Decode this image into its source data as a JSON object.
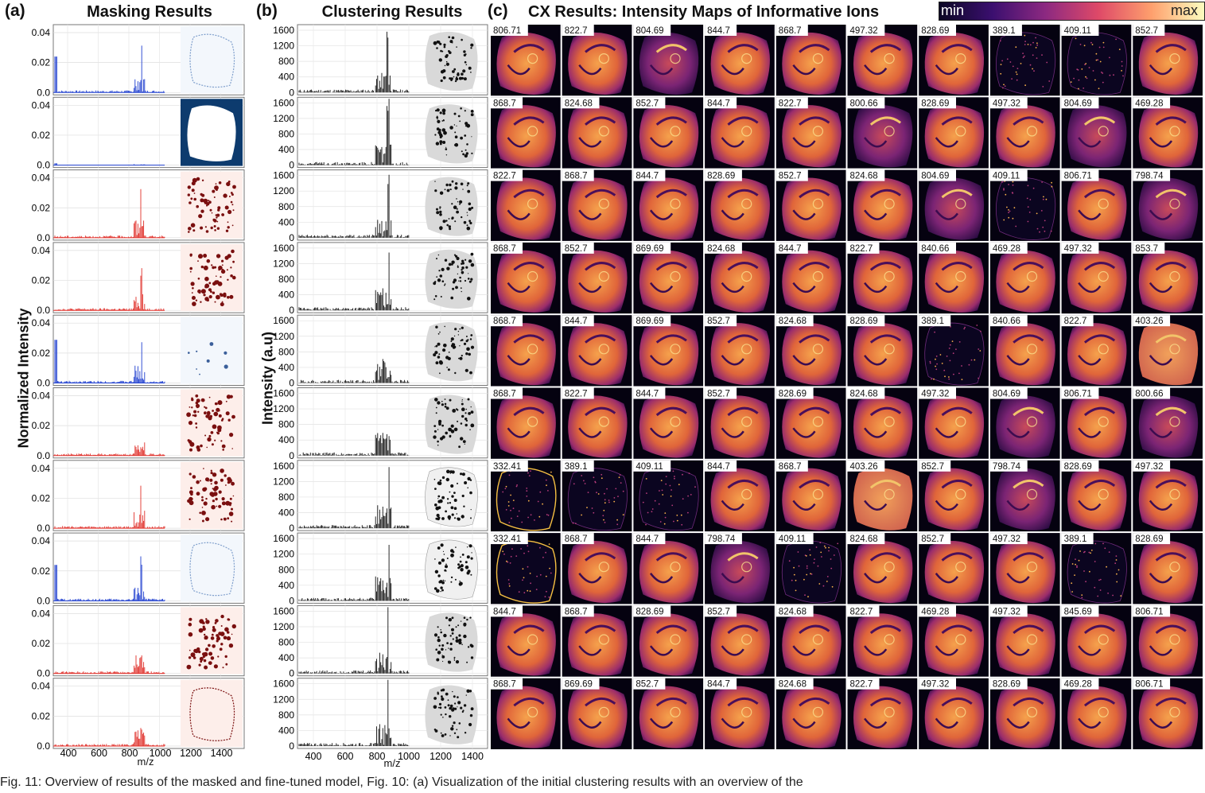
{
  "panels": {
    "a": {
      "letter": "(a)",
      "title": "Masking Results",
      "ylabel": "Normalized Intensity",
      "xlabel": "m/z",
      "yticks": [
        "0.04",
        "0.02",
        "0.0"
      ],
      "xticks": [
        "400",
        "600",
        "800",
        "1000",
        "1200",
        "1400"
      ]
    },
    "b": {
      "letter": "(b)",
      "title": "Clustering Results",
      "ylabel": "Intensity (a.u)",
      "xlabel": "m/z",
      "yticks": [
        "1600",
        "1200",
        "800",
        "400",
        "0"
      ],
      "xticks": [
        "400",
        "600",
        "800",
        "1000",
        "1200",
        "1400"
      ]
    },
    "c": {
      "letter": "(c)",
      "title": "CX Results:  Intensity Maps of Informative Ions"
    }
  },
  "colorbar": {
    "min_label": "min",
    "max_label": "max",
    "colors": [
      "#0b0724",
      "#3b0f6f",
      "#8c2981",
      "#de4968",
      "#fe9f6d",
      "#fcfdbf"
    ]
  },
  "masking_rows": [
    {
      "color": "#1f3fcf",
      "mask": "blue-outline"
    },
    {
      "color": "#1f3fcf",
      "mask": "navy-filled"
    },
    {
      "color": "#e0302a",
      "mask": "red-spots"
    },
    {
      "color": "#e0302a",
      "mask": "red-spots"
    },
    {
      "color": "#1f3fcf",
      "mask": "blue-sparse"
    },
    {
      "color": "#e0302a",
      "mask": "red-spots"
    },
    {
      "color": "#e0302a",
      "mask": "red-spots"
    },
    {
      "color": "#1f3fcf",
      "mask": "blue-outline"
    },
    {
      "color": "#e0302a",
      "mask": "red-spots"
    },
    {
      "color": "#e0302a",
      "mask": "red-outline"
    }
  ],
  "ion_grid": [
    [
      "806.71",
      "822.7",
      "804.69",
      "844.7",
      "868.7",
      "497.32",
      "828.69",
      "389.1",
      "409.11",
      "852.7"
    ],
    [
      "868.7",
      "824.68",
      "852.7",
      "844.7",
      "822.7",
      "800.66",
      "828.69",
      "497.32",
      "804.69",
      "469.28"
    ],
    [
      "822.7",
      "868.7",
      "844.7",
      "828.69",
      "852.7",
      "824.68",
      "804.69",
      "409.11",
      "806.71",
      "798.74"
    ],
    [
      "868.7",
      "852.7",
      "869.69",
      "824.68",
      "844.7",
      "822.7",
      "840.66",
      "469.28",
      "497.32",
      "853.7"
    ],
    [
      "868.7",
      "844.7",
      "869.69",
      "852.7",
      "824.68",
      "828.69",
      "389.1",
      "840.66",
      "822.7",
      "403.26"
    ],
    [
      "868.7",
      "822.7",
      "844.7",
      "852.7",
      "828.69",
      "824.68",
      "497.32",
      "804.69",
      "806.71",
      "800.66"
    ],
    [
      "332.41",
      "389.1",
      "409.11",
      "844.7",
      "868.7",
      "403.26",
      "852.7",
      "798.74",
      "828.69",
      "497.32"
    ],
    [
      "332.41",
      "868.7",
      "844.7",
      "798.74",
      "409.11",
      "824.68",
      "852.7",
      "497.32",
      "389.1",
      "828.69"
    ],
    [
      "844.7",
      "868.7",
      "828.69",
      "852.7",
      "824.68",
      "822.7",
      "469.28",
      "497.32",
      "845.69",
      "806.71"
    ],
    [
      "868.7",
      "869.69",
      "852.7",
      "844.7",
      "824.68",
      "822.7",
      "497.32",
      "828.69",
      "469.28",
      "806.71"
    ]
  ],
  "caption": "Fig. 11: Overview of results of the masked and fine-tuned model, Fig. 10: (a) Visualization of the initial clustering results with an overview of the"
}
